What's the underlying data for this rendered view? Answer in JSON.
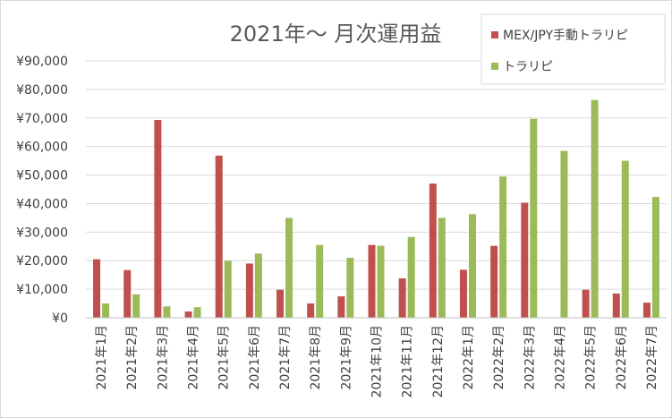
{
  "chart_data": {
    "type": "bar",
    "title": "2021年～ 月次運用益",
    "categories": [
      "2021年1月",
      "2021年2月",
      "2021年3月",
      "2021年4月",
      "2021年5月",
      "2021年6月",
      "2021年7月",
      "2021年8月",
      "2021年9月",
      "2021年10月",
      "2021年11月",
      "2021年12月",
      "2022年1月",
      "2022年2月",
      "2022年3月",
      "2022年4月",
      "2022年5月",
      "2022年6月",
      "2022年7月"
    ],
    "series": [
      {
        "name": "MEX/JPY手動トラリピ",
        "color": "#c0504d",
        "values": [
          20500,
          16700,
          69300,
          2200,
          56800,
          19000,
          9800,
          5000,
          7500,
          25500,
          13800,
          47000,
          16800,
          25200,
          40300,
          0,
          9800,
          8500,
          5300
        ]
      },
      {
        "name": "トラリピ",
        "color": "#9bbb59",
        "values": [
          5000,
          8200,
          4000,
          3700,
          20000,
          22500,
          35000,
          25500,
          21000,
          25200,
          28300,
          35000,
          36300,
          49500,
          69700,
          58500,
          76300,
          55000,
          42300
        ]
      }
    ],
    "yticks": [
      "¥0",
      "¥10,000",
      "¥20,000",
      "¥30,000",
      "¥40,000",
      "¥50,000",
      "¥60,000",
      "¥70,000",
      "¥80,000",
      "¥90,000"
    ],
    "ylim": [
      0,
      90000
    ],
    "grid": true,
    "legend": "top-right"
  }
}
